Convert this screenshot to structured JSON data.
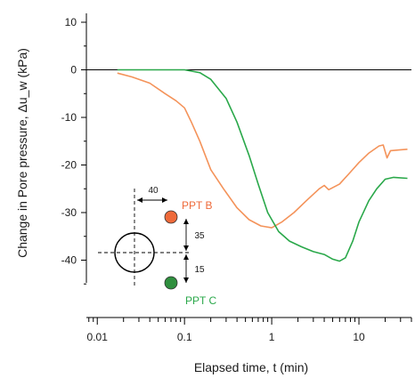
{
  "chart_data": {
    "type": "line",
    "xlabel": "Elapsed time, t (min)",
    "ylabel": "Change in Pore pressure, Δu_w (kPa)",
    "x_scale": "log",
    "xlim": [
      0.01,
      40
    ],
    "ylim": [
      -50,
      10
    ],
    "x_ticks": [
      {
        "value": 0.01,
        "label": "0.01"
      },
      {
        "value": 0.1,
        "label": "0.1"
      },
      {
        "value": 1,
        "label": "1"
      },
      {
        "value": 10,
        "label": "10"
      }
    ],
    "y_ticks": [
      {
        "value": 10,
        "label": "10"
      },
      {
        "value": 0,
        "label": "0"
      },
      {
        "value": -10,
        "label": "-10"
      },
      {
        "value": -20,
        "label": "-20"
      },
      {
        "value": -30,
        "label": "-30"
      },
      {
        "value": -40,
        "label": "-40"
      }
    ],
    "reference_line_y": 0,
    "series": [
      {
        "name": "PPT B",
        "color": "#f4935a",
        "points": [
          [
            0.017,
            -0.7
          ],
          [
            0.025,
            -1.5
          ],
          [
            0.04,
            -2.8
          ],
          [
            0.06,
            -5.0
          ],
          [
            0.08,
            -6.5
          ],
          [
            0.1,
            -8.0
          ],
          [
            0.12,
            -11.0
          ],
          [
            0.15,
            -15.0
          ],
          [
            0.2,
            -21.0
          ],
          [
            0.28,
            -25.0
          ],
          [
            0.4,
            -29.0
          ],
          [
            0.55,
            -31.5
          ],
          [
            0.75,
            -32.8
          ],
          [
            1.0,
            -33.2
          ],
          [
            1.3,
            -32.0
          ],
          [
            1.8,
            -30.0
          ],
          [
            2.5,
            -27.5
          ],
          [
            3.5,
            -25.0
          ],
          [
            4.0,
            -24.3
          ],
          [
            4.5,
            -25.2
          ],
          [
            6.0,
            -24.0
          ],
          [
            8.0,
            -21.5
          ],
          [
            10.0,
            -19.5
          ],
          [
            13.0,
            -17.5
          ],
          [
            17.0,
            -16.0
          ],
          [
            19.0,
            -15.8
          ],
          [
            21.0,
            -18.5
          ],
          [
            23.0,
            -17.0
          ],
          [
            30.0,
            -16.8
          ],
          [
            36.0,
            -16.7
          ]
        ]
      },
      {
        "name": "PPT C",
        "color": "#2aa84a",
        "points": [
          [
            0.017,
            0
          ],
          [
            0.05,
            0
          ],
          [
            0.1,
            0
          ],
          [
            0.15,
            -0.6
          ],
          [
            0.2,
            -2.0
          ],
          [
            0.3,
            -6.0
          ],
          [
            0.4,
            -11.0
          ],
          [
            0.55,
            -18.0
          ],
          [
            0.7,
            -24.0
          ],
          [
            0.9,
            -30.0
          ],
          [
            1.2,
            -34.0
          ],
          [
            1.6,
            -36.0
          ],
          [
            2.2,
            -37.2
          ],
          [
            3.0,
            -38.2
          ],
          [
            4.0,
            -38.8
          ],
          [
            5.0,
            -39.8
          ],
          [
            6.0,
            -40.2
          ],
          [
            7.0,
            -39.5
          ],
          [
            8.5,
            -36.0
          ],
          [
            10.0,
            -32.0
          ],
          [
            13.0,
            -27.5
          ],
          [
            16.0,
            -25.0
          ],
          [
            20.0,
            -23.0
          ],
          [
            25.0,
            -22.6
          ],
          [
            36.0,
            -22.8
          ]
        ]
      }
    ],
    "inset": {
      "label_b": "PPT B",
      "label_c": "PPT C",
      "dim_horizontal": "40",
      "dim_vertical_top": "35",
      "dim_vertical_bottom": "15",
      "color_b": "#ee6a3a",
      "color_c": "#2f8f3e"
    }
  }
}
